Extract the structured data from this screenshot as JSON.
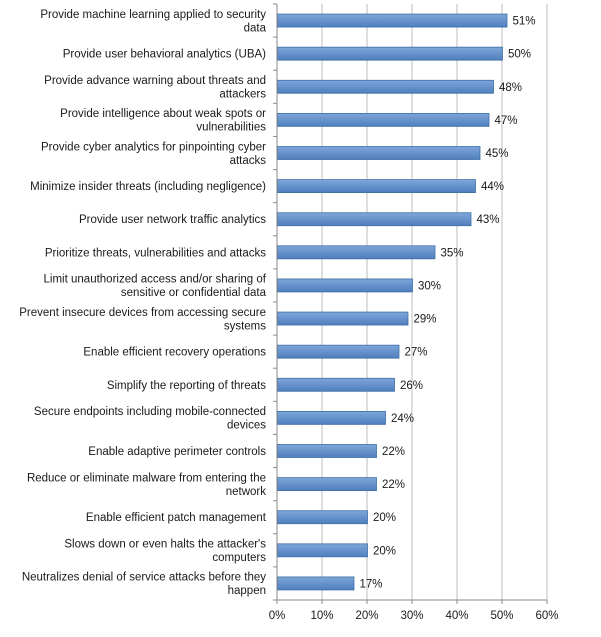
{
  "chart_data": {
    "type": "bar",
    "orientation": "horizontal",
    "title": "",
    "xlabel": "",
    "ylabel": "",
    "xlim": [
      0,
      60
    ],
    "grid": true,
    "bar_color": "#5b8ac6",
    "bar_edge_color": "#3f6ea6",
    "categories": [
      [
        "Provide machine learning applied to security",
        "data"
      ],
      [
        "Provide user behavioral analytics (UBA)"
      ],
      [
        "Provide advance warning about threats and",
        "attackers"
      ],
      [
        "Provide intelligence about weak spots or",
        "vulnerabilities"
      ],
      [
        "Provide cyber analytics for pinpointing cyber",
        "attacks"
      ],
      [
        "Minimize insider threats (including negligence)"
      ],
      [
        "Provide user network traffic analytics"
      ],
      [
        "Prioritize threats, vulnerabilities and attacks"
      ],
      [
        "Limit unauthorized access and/or sharing of",
        "sensitive or confidential data"
      ],
      [
        "Prevent insecure devices from accessing secure",
        "systems"
      ],
      [
        "Enable efficient recovery operations"
      ],
      [
        "Simplify the reporting of threats"
      ],
      [
        "Secure endpoints including mobile-connected",
        "devices"
      ],
      [
        "Enable adaptive perimeter controls"
      ],
      [
        "Reduce or eliminate malware from entering the",
        "network"
      ],
      [
        "Enable efficient patch management"
      ],
      [
        "Slows down or even halts the attacker's",
        "computers"
      ],
      [
        "Neutralizes denial of service attacks before they",
        "happen"
      ]
    ],
    "values": [
      51,
      50,
      48,
      47,
      45,
      44,
      43,
      35,
      30,
      29,
      27,
      26,
      24,
      22,
      22,
      20,
      20,
      17
    ],
    "value_labels": [
      "51%",
      "50%",
      "48%",
      "47%",
      "45%",
      "44%",
      "43%",
      "35%",
      "30%",
      "29%",
      "27%",
      "26%",
      "24%",
      "22%",
      "22%",
      "20%",
      "20%",
      "17%"
    ],
    "x_ticks": [
      0,
      10,
      20,
      30,
      40,
      50,
      60
    ],
    "x_tick_labels": [
      "0%",
      "10%",
      "20%",
      "30%",
      "40%",
      "50%",
      "60%"
    ]
  }
}
